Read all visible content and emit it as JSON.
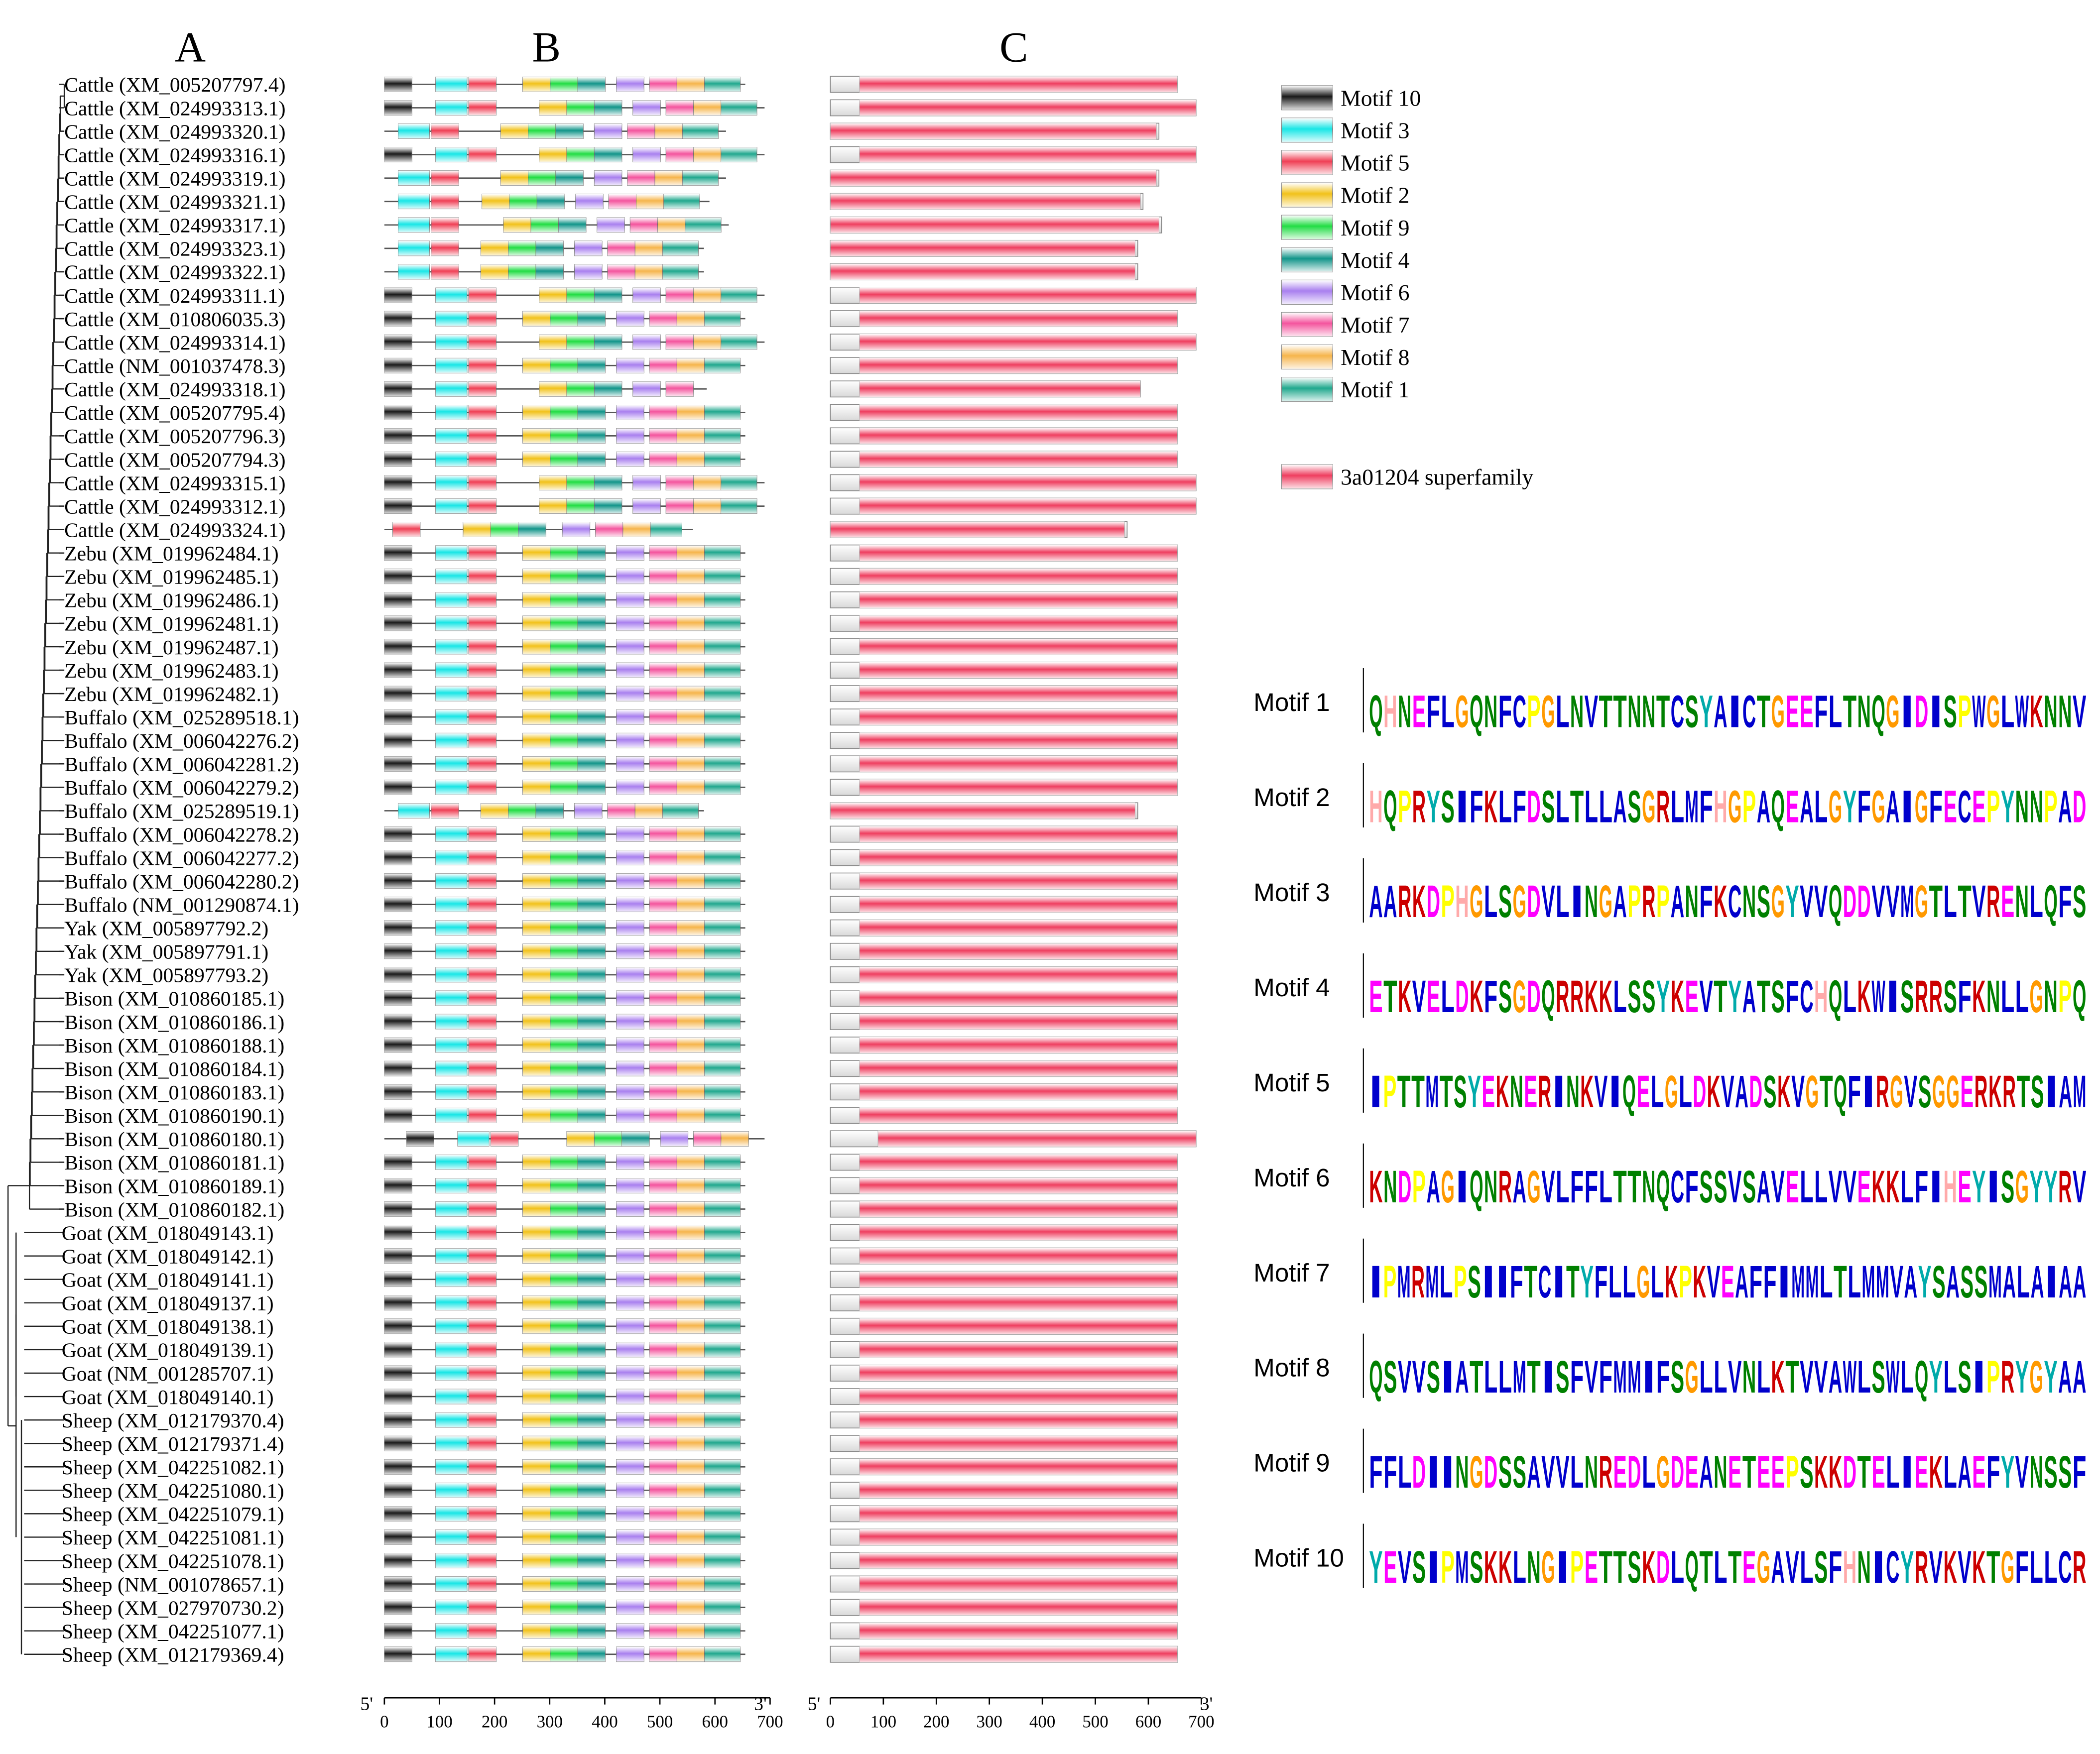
{
  "panels": {
    "a": "A",
    "b": "B",
    "c": "C"
  },
  "species": [
    {
      "label": "Cattle (XM_005207797.4)",
      "b": "l",
      "c": "S"
    },
    {
      "label": "Cattle (XM_024993313.1)",
      "b": "x",
      "c": "X"
    },
    {
      "label": "Cattle (XM_024993320.1)",
      "b": "p",
      "c": "P"
    },
    {
      "label": "Cattle (XM_024993316.1)",
      "b": "x",
      "c": "X"
    },
    {
      "label": "Cattle (XM_024993319.1)",
      "b": "p",
      "c": "P"
    },
    {
      "label": "Cattle (XM_024993321.1)",
      "b": "p2",
      "c": "P2"
    },
    {
      "label": "Cattle (XM_024993317.1)",
      "b": "p3",
      "c": "P3"
    },
    {
      "label": "Cattle (XM_024993323.1)",
      "b": "q",
      "c": "Q"
    },
    {
      "label": "Cattle (XM_024993322.1)",
      "b": "q",
      "c": "Q"
    },
    {
      "label": "Cattle (XM_024993311.1)",
      "b": "x",
      "c": "X"
    },
    {
      "label": "Cattle (XM_010806035.3)",
      "b": "l",
      "c": "S"
    },
    {
      "label": "Cattle (XM_024993314.1)",
      "b": "x",
      "c": "X"
    },
    {
      "label": "Cattle (NM_001037478.3)",
      "b": "l",
      "c": "S"
    },
    {
      "label": "Cattle (XM_024993318.1)",
      "b": "y",
      "c": "Y"
    },
    {
      "label": "Cattle (XM_005207795.4)",
      "b": "s",
      "c": "S"
    },
    {
      "label": "Cattle (XM_005207796.3)",
      "b": "s",
      "c": "S"
    },
    {
      "label": "Cattle (XM_005207794.3)",
      "b": "s",
      "c": "S"
    },
    {
      "label": "Cattle (XM_024993315.1)",
      "b": "x",
      "c": "X"
    },
    {
      "label": "Cattle (XM_024993312.1)",
      "b": "x",
      "c": "X"
    },
    {
      "label": "Cattle (XM_024993324.1)",
      "b": "r",
      "c": "R"
    },
    {
      "label": "Zebu (XM_019962484.1)",
      "b": "s",
      "c": "S"
    },
    {
      "label": "Zebu (XM_019962485.1)",
      "b": "s",
      "c": "S"
    },
    {
      "label": "Zebu (XM_019962486.1)",
      "b": "s",
      "c": "S"
    },
    {
      "label": "Zebu (XM_019962481.1)",
      "b": "s",
      "c": "S"
    },
    {
      "label": "Zebu (XM_019962487.1)",
      "b": "s",
      "c": "S"
    },
    {
      "label": "Zebu (XM_019962483.1)",
      "b": "s",
      "c": "S"
    },
    {
      "label": "Zebu (XM_019962482.1)",
      "b": "s",
      "c": "S"
    },
    {
      "label": "Buffalo (XM_025289518.1)",
      "b": "s",
      "c": "S"
    },
    {
      "label": "Buffalo (XM_006042276.2)",
      "b": "s",
      "c": "S"
    },
    {
      "label": "Buffalo (XM_006042281.2)",
      "b": "s",
      "c": "S"
    },
    {
      "label": "Buffalo (XM_006042279.2)",
      "b": "s",
      "c": "S"
    },
    {
      "label": "Buffalo (XM_025289519.1)",
      "b": "q",
      "c": "Q"
    },
    {
      "label": "Buffalo (XM_006042278.2)",
      "b": "s",
      "c": "S"
    },
    {
      "label": "Buffalo (XM_006042277.2)",
      "b": "s",
      "c": "S"
    },
    {
      "label": "Buffalo (XM_006042280.2)",
      "b": "s",
      "c": "S"
    },
    {
      "label": "Buffalo (NM_001290874.1)",
      "b": "s",
      "c": "S"
    },
    {
      "label": "Yak (XM_005897792.2)",
      "b": "s",
      "c": "S"
    },
    {
      "label": "Yak (XM_005897791.1)",
      "b": "s",
      "c": "S"
    },
    {
      "label": "Yak (XM_005897793.2)",
      "b": "k",
      "c": "S"
    },
    {
      "label": "Bison (XM_010860185.1)",
      "b": "s",
      "c": "S"
    },
    {
      "label": "Bison (XM_010860186.1)",
      "b": "s",
      "c": "S"
    },
    {
      "label": "Bison (XM_010860188.1)",
      "b": "s",
      "c": "S"
    },
    {
      "label": "Bison (XM_010860184.1)",
      "b": "s",
      "c": "S"
    },
    {
      "label": "Bison (XM_010860183.1)",
      "b": "s",
      "c": "S"
    },
    {
      "label": "Bison (XM_010860190.1)",
      "b": "s",
      "c": "S"
    },
    {
      "label": "Bison (XM_010860180.1)",
      "b": "z",
      "c": "Z"
    },
    {
      "label": "Bison (XM_010860181.1)",
      "b": "s",
      "c": "S"
    },
    {
      "label": "Bison (XM_010860189.1)",
      "b": "s",
      "c": "S"
    },
    {
      "label": "Bison (XM_010860182.1)",
      "b": "s",
      "c": "S"
    },
    {
      "label": "Goat (XM_018049143.1)",
      "b": "s",
      "c": "S"
    },
    {
      "label": "Goat (XM_018049142.1)",
      "b": "s",
      "c": "S"
    },
    {
      "label": "Goat (XM_018049141.1)",
      "b": "s",
      "c": "S"
    },
    {
      "label": "Goat (XM_018049137.1)",
      "b": "s",
      "c": "S"
    },
    {
      "label": "Goat (XM_018049138.1)",
      "b": "s",
      "c": "S"
    },
    {
      "label": "Goat (XM_018049139.1)",
      "b": "s",
      "c": "S"
    },
    {
      "label": "Goat (NM_001285707.1)",
      "b": "s",
      "c": "S"
    },
    {
      "label": "Goat (XM_018049140.1)",
      "b": "s",
      "c": "S"
    },
    {
      "label": "Sheep (XM_012179370.4)",
      "b": "s",
      "c": "S"
    },
    {
      "label": "Sheep (XM_012179371.4)",
      "b": "s",
      "c": "S"
    },
    {
      "label": "Sheep (XM_042251082.1)",
      "b": "s",
      "c": "S"
    },
    {
      "label": "Sheep (XM_042251080.1)",
      "b": "s",
      "c": "S"
    },
    {
      "label": "Sheep (XM_042251079.1)",
      "b": "s",
      "c": "S"
    },
    {
      "label": "Sheep (XM_042251081.1)",
      "b": "s",
      "c": "S"
    },
    {
      "label": "Sheep (XM_042251078.1)",
      "b": "s",
      "c": "S"
    },
    {
      "label": "Sheep (NM_001078657.1)",
      "b": "s",
      "c": "S"
    },
    {
      "label": "Sheep (XM_027970730.2)",
      "b": "s",
      "c": "S"
    },
    {
      "label": "Sheep (XM_042251077.1)",
      "b": "s",
      "c": "S"
    },
    {
      "label": "Sheep (XM_012179369.4)",
      "b": "s",
      "c": "S"
    }
  ],
  "motif_layouts": {
    "s": {
      "len": 655,
      "m": [
        [
          10,
          0,
          50
        ],
        [
          3,
          93,
          150
        ],
        [
          5,
          153,
          203
        ],
        [
          2,
          251,
          301
        ],
        [
          9,
          301,
          351
        ],
        [
          4,
          351,
          401
        ],
        [
          6,
          421,
          471
        ],
        [
          7,
          481,
          531
        ],
        [
          8,
          531,
          581
        ],
        [
          1,
          581,
          646
        ]
      ]
    },
    "l": {
      "len": 655,
      "m": [
        [
          10,
          0,
          50
        ],
        [
          3,
          93,
          150
        ],
        [
          5,
          153,
          203
        ],
        [
          2,
          251,
          301
        ],
        [
          9,
          301,
          351
        ],
        [
          4,
          351,
          401
        ],
        [
          6,
          421,
          471
        ],
        [
          7,
          481,
          531
        ],
        [
          8,
          531,
          581
        ],
        [
          1,
          581,
          646
        ]
      ]
    },
    "x": {
      "len": 690,
      "m": [
        [
          10,
          0,
          50
        ],
        [
          3,
          93,
          150
        ],
        [
          5,
          153,
          203
        ],
        [
          2,
          281,
          331
        ],
        [
          9,
          331,
          381
        ],
        [
          4,
          381,
          431
        ],
        [
          6,
          451,
          501
        ],
        [
          7,
          511,
          561
        ],
        [
          8,
          561,
          611
        ],
        [
          1,
          611,
          676
        ]
      ]
    },
    "p": {
      "len": 620,
      "m": [
        [
          3,
          25,
          82
        ],
        [
          5,
          85,
          135
        ],
        [
          2,
          211,
          261
        ],
        [
          9,
          261,
          311
        ],
        [
          4,
          311,
          361
        ],
        [
          6,
          381,
          431
        ],
        [
          7,
          441,
          491
        ],
        [
          8,
          491,
          541
        ],
        [
          1,
          541,
          606
        ]
      ]
    },
    "p2": {
      "len": 590,
      "m": [
        [
          3,
          25,
          82
        ],
        [
          5,
          85,
          135
        ],
        [
          2,
          177,
          227
        ],
        [
          9,
          227,
          277
        ],
        [
          4,
          277,
          327
        ],
        [
          6,
          347,
          397
        ],
        [
          7,
          407,
          457
        ],
        [
          8,
          457,
          507
        ],
        [
          1,
          507,
          572
        ]
      ]
    },
    "p3": {
      "len": 625,
      "m": [
        [
          3,
          25,
          82
        ],
        [
          5,
          85,
          135
        ],
        [
          2,
          216,
          266
        ],
        [
          9,
          266,
          316
        ],
        [
          4,
          316,
          366
        ],
        [
          6,
          386,
          436
        ],
        [
          7,
          446,
          496
        ],
        [
          8,
          496,
          546
        ],
        [
          1,
          546,
          611
        ]
      ]
    },
    "q": {
      "len": 580,
      "m": [
        [
          3,
          25,
          82
        ],
        [
          5,
          85,
          135
        ],
        [
          2,
          175,
          225
        ],
        [
          9,
          225,
          275
        ],
        [
          4,
          275,
          325
        ],
        [
          6,
          345,
          395
        ],
        [
          7,
          405,
          455
        ],
        [
          8,
          455,
          505
        ],
        [
          1,
          505,
          570
        ]
      ]
    },
    "y": {
      "len": 585,
      "m": [
        [
          10,
          0,
          50
        ],
        [
          3,
          93,
          150
        ],
        [
          5,
          153,
          203
        ],
        [
          2,
          281,
          331
        ],
        [
          9,
          331,
          381
        ],
        [
          4,
          381,
          431
        ],
        [
          6,
          451,
          501
        ],
        [
          7,
          511,
          561
        ]
      ]
    },
    "r": {
      "len": 560,
      "m": [
        [
          5,
          15,
          65
        ],
        [
          2,
          143,
          193
        ],
        [
          9,
          193,
          243
        ],
        [
          4,
          243,
          293
        ],
        [
          6,
          323,
          373
        ],
        [
          7,
          383,
          433
        ],
        [
          8,
          433,
          483
        ],
        [
          1,
          483,
          540
        ]
      ]
    },
    "z": {
      "len": 690,
      "m": [
        [
          10,
          40,
          90
        ],
        [
          3,
          133,
          190
        ],
        [
          5,
          193,
          243
        ],
        [
          2,
          331,
          381
        ],
        [
          9,
          381,
          431
        ],
        [
          4,
          431,
          481
        ],
        [
          6,
          501,
          551
        ],
        [
          7,
          561,
          611
        ],
        [
          8,
          611,
          661
        ]
      ]
    },
    "k": {
      "len": 655,
      "m": [
        [
          10,
          0,
          50
        ],
        [
          3,
          93,
          150
        ],
        [
          5,
          153,
          203
        ],
        [
          2,
          251,
          301
        ],
        [
          9,
          301,
          351
        ],
        [
          4,
          351,
          401
        ],
        [
          6,
          421,
          471
        ],
        [
          7,
          481,
          531
        ],
        [
          8,
          531,
          581
        ],
        [
          1,
          581,
          646
        ]
      ]
    }
  },
  "domain_layouts": {
    "S": {
      "len": 655,
      "d": [
        55,
        655
      ]
    },
    "X": {
      "len": 690,
      "d": [
        55,
        690
      ]
    },
    "P": {
      "len": 620,
      "d": [
        0,
        615
      ]
    },
    "P2": {
      "len": 590,
      "d": [
        0,
        585
      ]
    },
    "P3": {
      "len": 625,
      "d": [
        0,
        620
      ]
    },
    "Q": {
      "len": 580,
      "d": [
        0,
        575
      ]
    },
    "Y": {
      "len": 585,
      "d": [
        55,
        585
      ]
    },
    "R": {
      "len": 560,
      "d": [
        0,
        555
      ]
    },
    "Z": {
      "len": 690,
      "d": [
        90,
        690
      ]
    }
  },
  "axis": {
    "ticks": [
      0,
      100,
      200,
      300,
      400,
      500,
      600,
      700
    ],
    "five_prime": "5'",
    "three_prime": "3'"
  },
  "legend": [
    {
      "num": 10,
      "label": "Motif 10",
      "color": "#1a1a1a"
    },
    {
      "num": 3,
      "label": "Motif 3",
      "color": "#19e6e6"
    },
    {
      "num": 5,
      "label": "Motif 5",
      "color": "#f04055"
    },
    {
      "num": 2,
      "label": "Motif 2",
      "color": "#f2c21b"
    },
    {
      "num": 9,
      "label": "Motif 9",
      "color": "#22dd44"
    },
    {
      "num": 4,
      "label": "Motif 4",
      "color": "#12958a"
    },
    {
      "num": 6,
      "label": "Motif 6",
      "color": "#a980ef"
    },
    {
      "num": 7,
      "label": "Motif 7",
      "color": "#f4559e"
    },
    {
      "num": 8,
      "label": "Motif 8",
      "color": "#f6b54c"
    },
    {
      "num": 1,
      "label": "Motif 1",
      "color": "#21a88e"
    }
  ],
  "domain_legend": {
    "label": "3a01204 superfamily",
    "color": "#ef3f60"
  },
  "logo_colors": {
    "A": "#0000cc",
    "V": "#0000cc",
    "L": "#0000cc",
    "I": "#0000cc",
    "M": "#0000cc",
    "F": "#0000cc",
    "W": "#0000cc",
    "C": "#0000cc",
    "G": "#ff9900",
    "P": "#ffff00",
    "S": "#008000",
    "T": "#008000",
    "Y": "#00aaaa",
    "H": "#ffaaaa",
    "N": "#008000",
    "Q": "#008000",
    "D": "#ff00ff",
    "E": "#ff00ff",
    "K": "#cc0000",
    "R": "#cc0000"
  },
  "logos": [
    {
      "label": "Motif 1",
      "seq": "QHNEFLGQNFCPGLNVTTNNTCSYAICTGEEFLTNQGIDISPWGLWKNNV"
    },
    {
      "label": "Motif 2",
      "seq": "HQPRYSIFKLFDSLTLLASGRLMFHGPAQEALGYFGAIGFECEPYNNPAD"
    },
    {
      "label": "Motif 3",
      "seq": "AARKDPHGLSGDVLINGAPRPANFKCNSGYVVQDDVVMGTLTVRENLQFS"
    },
    {
      "label": "Motif 4",
      "seq": "ETKVELDKFSGDQRRKKLSSYKEVTYATSFCHQLKWISRRSFKNLLGNPQ"
    },
    {
      "label": "Motif 5",
      "seq": "IPTTMTSYEKNERINKVIQELGLDKVADSKVGTQFIRGVSGGERKRTSIAM"
    },
    {
      "label": "Motif 6",
      "seq": "KNDPAGIQNRAGVLFFLTTNQCFSSVSAVELLVVEKKLFIHEYISGYYRV"
    },
    {
      "label": "Motif 7",
      "seq": "IPMRMLPSIIFTCITYFLLGLKPKVEAFFIMMLTLMMVAYSASSMALAIAA"
    },
    {
      "label": "Motif 8",
      "seq": "QSVVSIATLLMTISFVFMMIFSGLLVNLKTVVAWLSWLQYLSIPRYGYAA"
    },
    {
      "label": "Motif 9",
      "seq": "FFLDIINGDSSAVVLNREDLGDEANETEEPSKKDTELIEKLAEFYVNSSF"
    },
    {
      "label": "Motif 10",
      "seq": "YEVSIPMSKKLNGIPETTSKDLQTLTEGAVLSFHNICYRVKVKTGFLLCR"
    }
  ]
}
